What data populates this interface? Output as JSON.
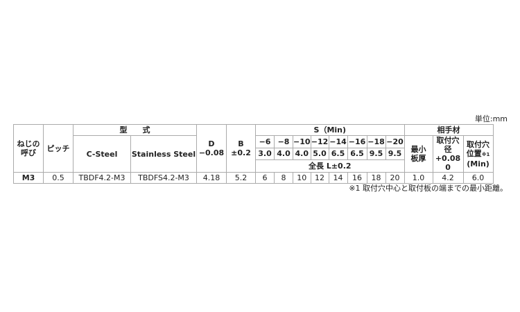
{
  "unit_label": "単位:mm",
  "footnote": "※1 取付穴中心と取付板の端までの最小距離。",
  "headers": {
    "nominal": "ねじの呼び",
    "pitch": "ピッチ",
    "model": "型　　式",
    "c_steel": "C-Steel",
    "stainless": "Stainless Steel",
    "d": "D",
    "d_tol": "−0.08",
    "b": "B",
    "b_tol": "±0.2",
    "s": "S（Min)",
    "s_cols": [
      "−6",
      "−8",
      "−10",
      "−12",
      "−14",
      "−16",
      "−18",
      "−20"
    ],
    "s_values": [
      "3.0",
      "4.0",
      "4.0",
      "5.0",
      "6.5",
      "6.5",
      "9.5",
      "9.5"
    ],
    "length": "全長 L±0.2",
    "mating": "相手材",
    "min_thickness": "最小板厚",
    "hole_dia": "取付穴径",
    "hole_dia_tol_upper": "+0.08",
    "hole_dia_tol_lower": "0",
    "hole_pos": "取付穴位置",
    "hole_pos_note": "※1",
    "hole_pos_min": "(Min)"
  },
  "row": {
    "nominal": "M3",
    "pitch": "0.5",
    "c_steel": "TBDF4.2-M3",
    "stainless": "TBDFS4.2-M3",
    "d": "4.18",
    "b": "5.2",
    "lengths": [
      "6",
      "8",
      "10",
      "12",
      "14",
      "16",
      "18",
      "20"
    ],
    "min_thickness": "1.0",
    "hole_dia": "4.2",
    "hole_pos": "6.0"
  }
}
